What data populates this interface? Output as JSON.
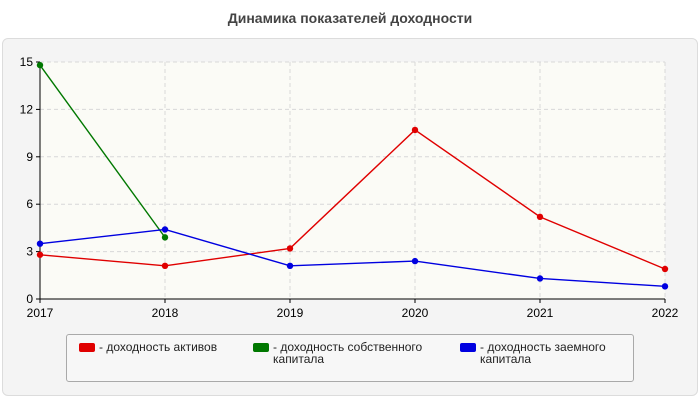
{
  "colors": {
    "background": "#ffffff",
    "panel": "#f4f4f4",
    "grid": "#d8d8d8"
  },
  "chart_data": {
    "type": "line",
    "title": "Динамика показателей доходности",
    "x": [
      "2017",
      "2018",
      "2019",
      "2020",
      "2021",
      "2022"
    ],
    "ylim": [
      0,
      15
    ],
    "yticks": [
      0,
      3,
      6,
      9,
      12,
      15
    ],
    "grid": true,
    "legend_position": "bottom",
    "series": [
      {
        "name": "- доходность активов",
        "color": "#e00000",
        "values": [
          2.8,
          2.1,
          3.2,
          10.7,
          5.2,
          1.9
        ]
      },
      {
        "name": "- доходность собственного капитала",
        "color": "#007800",
        "values": [
          14.8,
          3.9,
          null,
          null,
          null,
          null
        ]
      },
      {
        "name": "- доходность заемного капитала",
        "color": "#0000e0",
        "values": [
          3.5,
          4.4,
          2.1,
          2.4,
          1.3,
          0.8
        ]
      }
    ]
  }
}
